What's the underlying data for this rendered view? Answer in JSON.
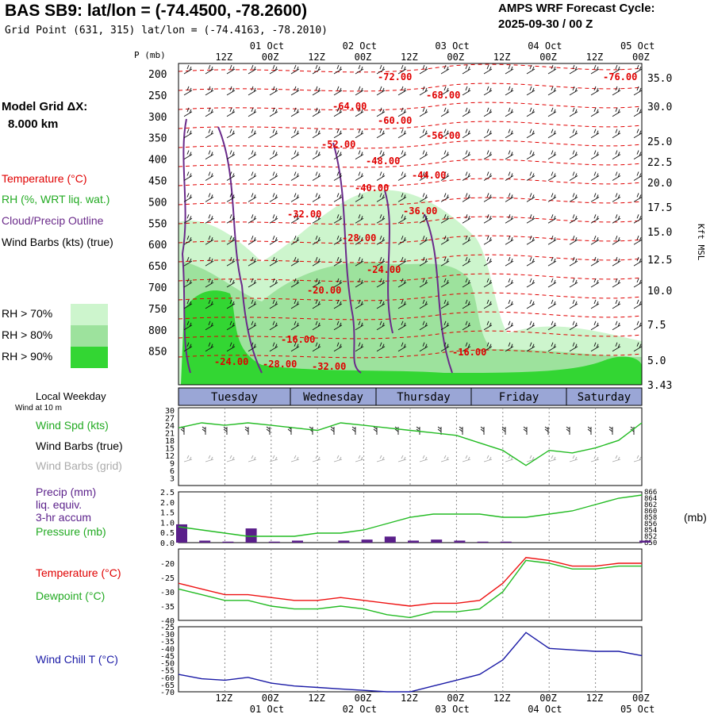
{
  "header": {
    "title": "BAS SB9:  lat/lon = (-74.4500, -78.2600)",
    "grid_point": "Grid Point (631, 315) lat/lon = (-74.4163, -78.2010)",
    "cycle_line1": "AMPS WRF Forecast Cycle:",
    "cycle_line2": "2025-09-30 / 00  Z",
    "model_grid_line1": "Model Grid ΔX:",
    "model_grid_line2": "8.000 km"
  },
  "upper_legend": {
    "temperature": "Temperature (°C)",
    "rh": "RH (%, WRT liq. wat.)",
    "cloud": "Cloud/Precip Outline",
    "wind": "Wind Barbs (kts) (true)",
    "rh70": "RH > 70%",
    "rh80": "RH > 80%",
    "rh90": "RH > 90%"
  },
  "colors": {
    "temperature": "#e00000",
    "rh70": "#cdf5cd",
    "rh80": "#9de29d",
    "rh90": "#33d633",
    "cloud": "#6a2a8a",
    "green_line": "#22bb22",
    "red_line": "#ee1111",
    "blue_line": "#1a1aa6",
    "precip_bar": "#5a1f8a",
    "grey_barbs": "#aaaaaa"
  },
  "time_axis": {
    "hour_labels": [
      "12Z",
      "00Z",
      "12Z",
      "00Z",
      "12Z",
      "00Z",
      "12Z",
      "00Z",
      "12Z",
      "00Z"
    ],
    "date_labels": [
      "01 Oct",
      "02 Oct",
      "03 Oct",
      "04 Oct",
      "05 Oct"
    ],
    "weekdays": [
      "Tuesday",
      "Wednesday",
      "Thursday",
      "Friday",
      "Saturday"
    ],
    "local_weekday_label": "Local Weekday",
    "wind_10m_label": "Wind at 10 m"
  },
  "chart_data": [
    {
      "type": "heatmap",
      "ylabel": "P (mb)",
      "yticks": [
        "200",
        "250",
        "300",
        "350",
        "400",
        "450",
        "500",
        "550",
        "600",
        "650",
        "700",
        "750",
        "800",
        "850"
      ],
      "right_axis_label": "Kft MSL",
      "right_ticks": [
        "35.0",
        "30.0",
        "25.0",
        "22.5",
        "20.0",
        "17.5",
        "15.0",
        "12.5",
        "10.0",
        "7.5",
        "5.0",
        "3.43"
      ],
      "temperature_labels": [
        "-72.00",
        "-76.00",
        "-68.00",
        "-64.00",
        "-60.00",
        "-56.00",
        "-52.00",
        "-48.00",
        "-44.00",
        "-40.00",
        "-36.00",
        "-32.00",
        "-28.00",
        "-24.00",
        "-20.00",
        "-16.00",
        "-16.00",
        "-24.00",
        "-28.00",
        "-32.00"
      ]
    },
    {
      "type": "line",
      "title": "",
      "ylim": [
        3,
        30
      ],
      "yticks": [
        "30",
        "27",
        "24",
        "21",
        "18",
        "15",
        "12",
        "9",
        "6",
        "3"
      ],
      "legend": [
        "Wind Spd (kts)",
        "Wind Barbs (true)",
        "Wind Barbs (grid)"
      ],
      "x_hours": [
        0,
        6,
        12,
        18,
        24,
        30,
        36,
        42,
        48,
        54,
        60,
        66,
        72,
        78,
        84,
        90,
        96,
        102,
        108,
        114,
        120
      ],
      "series": [
        {
          "name": "Wind Spd (kts)",
          "values": [
            23,
            25,
            24,
            25,
            24,
            23,
            22,
            25,
            24,
            23,
            22,
            21,
            20,
            17,
            14,
            8,
            14,
            13,
            15,
            18,
            25
          ]
        }
      ]
    },
    {
      "type": "bar",
      "ylim": [
        0,
        2.5
      ],
      "yticks": [
        "2.5",
        "2.0",
        "1.5",
        "1.0",
        "0.5",
        "0.0"
      ],
      "right_yticks": [
        "866",
        "864",
        "862",
        "860",
        "858",
        "856",
        "854",
        "852",
        "850"
      ],
      "right_ylim": [
        850,
        866
      ],
      "legend": [
        "Precip (mm)",
        "liq. equiv.",
        "3-hr accum",
        "Pressure (mb)"
      ],
      "right_unit": "(mb)",
      "x_hours": [
        0,
        6,
        12,
        18,
        24,
        30,
        36,
        42,
        48,
        54,
        60,
        66,
        72,
        78,
        84,
        90,
        96,
        102,
        108,
        114,
        120
      ],
      "precip": [
        0.9,
        0.1,
        0.05,
        0.7,
        0.05,
        0.1,
        0.0,
        0.1,
        0.15,
        0.3,
        0.1,
        0.15,
        0.1,
        0.05,
        0.05,
        0.0,
        0.0,
        0.0,
        0.0,
        0.0,
        0.1
      ],
      "pressure": [
        855,
        854,
        853,
        852,
        852,
        852,
        853,
        853,
        854,
        856,
        858,
        859,
        859,
        859,
        858,
        858,
        859,
        860,
        862,
        864,
        865
      ]
    },
    {
      "type": "line",
      "ylim": [
        -40,
        -15
      ],
      "yticks": [
        "-20",
        "-25",
        "-30",
        "-35",
        "-40"
      ],
      "legend": [
        "Temperature (°C)",
        "Dewpoint (°C)"
      ],
      "x_hours": [
        0,
        6,
        12,
        18,
        24,
        30,
        36,
        42,
        48,
        54,
        60,
        66,
        72,
        78,
        84,
        90,
        96,
        102,
        108,
        114,
        120
      ],
      "series": [
        {
          "name": "Temperature (°C)",
          "values": [
            -27,
            -29,
            -31,
            -31,
            -32,
            -33,
            -33,
            -32,
            -33,
            -34,
            -35,
            -34,
            -34,
            -33,
            -27,
            -18,
            -19,
            -21,
            -21,
            -20,
            -20
          ]
        },
        {
          "name": "Dewpoint (°C)",
          "values": [
            -29,
            -31,
            -33,
            -33,
            -35,
            -36,
            -36,
            -35,
            -36,
            -38,
            -39,
            -37,
            -37,
            -36,
            -30,
            -19,
            -20,
            -22,
            -22,
            -21,
            -21
          ]
        }
      ]
    },
    {
      "type": "line",
      "ylim": [
        -70,
        -25
      ],
      "yticks": [
        "-25",
        "-30",
        "-35",
        "-40",
        "-45",
        "-50",
        "-55",
        "-60",
        "-65",
        "-70"
      ],
      "legend": [
        "Wind Chill T (°C)"
      ],
      "x_hours": [
        0,
        6,
        12,
        18,
        24,
        30,
        36,
        42,
        48,
        54,
        60,
        66,
        72,
        78,
        84,
        90,
        96,
        102,
        108,
        114,
        120
      ],
      "series": [
        {
          "name": "Wind Chill T (°C)",
          "values": [
            -58,
            -61,
            -62,
            -60,
            -64,
            -66,
            -67,
            -68,
            -69,
            -70,
            -70,
            -66,
            -62,
            -58,
            -48,
            -29,
            -40,
            -41,
            -42,
            -42,
            -45
          ]
        }
      ]
    }
  ],
  "lower_legend": {
    "wind_spd": "Wind Spd (kts)",
    "barbs_true": "Wind Barbs (true)",
    "barbs_grid": "Wind Barbs (grid)",
    "precip1": "Precip (mm)",
    "precip2": "liq. equiv.",
    "precip3": "3-hr accum",
    "pressure": "Pressure (mb)",
    "pressure_unit": "(mb)",
    "temperature": "Temperature (°C)",
    "dewpoint": "Dewpoint (°C)",
    "wind_chill": "Wind Chill T (°C)"
  }
}
